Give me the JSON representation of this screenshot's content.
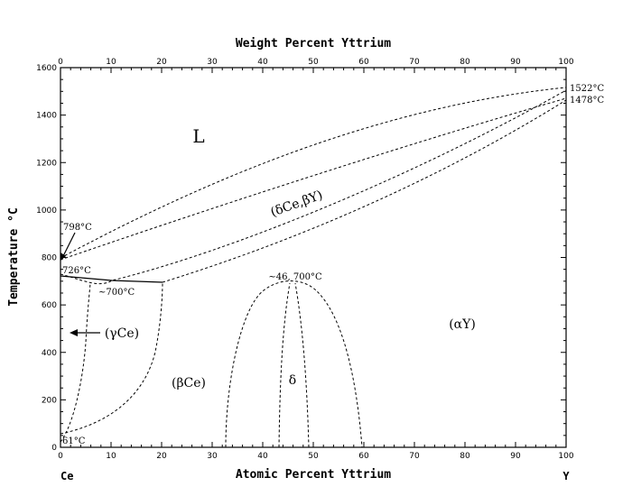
{
  "axes": {
    "top_title": "Weight Percent Yttrium",
    "bottom_title": "Atomic Percent Yttrium",
    "left_title": "Temperature °C",
    "x_ticks": [
      "0",
      "10",
      "20",
      "30",
      "40",
      "50",
      "60",
      "70",
      "80",
      "90",
      "100"
    ],
    "top_ticks": [
      "0",
      "10",
      "20",
      "30",
      "40",
      "50",
      "60",
      "70",
      "80",
      "90",
      "100"
    ],
    "y_ticks": [
      "0",
      "200",
      "400",
      "600",
      "800",
      "1000",
      "1200",
      "1400",
      "1600"
    ],
    "x_range": [
      0,
      100
    ],
    "y_range": [
      0,
      1600
    ]
  },
  "elements": {
    "left": "Ce",
    "right": "Y"
  },
  "phases": {
    "liquid": "L",
    "delta_ce_beta_y": "(δCe,βY)",
    "gamma_ce": "(γCe)",
    "beta_ce": "(βCe)",
    "delta": "δ",
    "alpha_y": "(αY)"
  },
  "annotations": {
    "y_melt_high": "1522°C",
    "y_melt_low": "1478°C",
    "ce_798": "798°C",
    "ce_726": "726°C",
    "eutectoid": "~700°C",
    "delta_max": "~46, 700°C",
    "ce_61": "61°C"
  }
}
